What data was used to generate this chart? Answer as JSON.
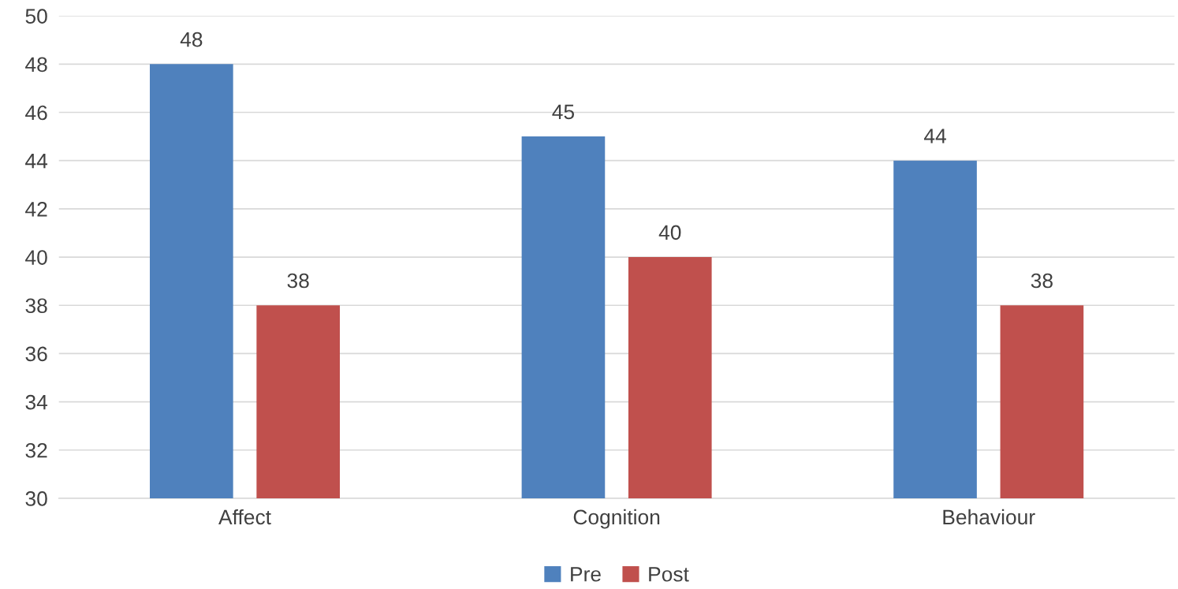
{
  "chart_data": {
    "type": "bar",
    "categories": [
      "Affect",
      "Cognition",
      "Behaviour"
    ],
    "series": [
      {
        "name": "Pre",
        "color": "#4f81bd",
        "values": [
          48,
          45,
          44
        ]
      },
      {
        "name": "Post",
        "color": "#c0504d",
        "values": [
          38,
          40,
          38
        ]
      }
    ],
    "ylim": [
      30,
      50
    ],
    "yticks": [
      30,
      32,
      34,
      36,
      38,
      40,
      42,
      44,
      46,
      48,
      50
    ],
    "grid": "y",
    "legend": "bottom",
    "data_labels": true
  }
}
